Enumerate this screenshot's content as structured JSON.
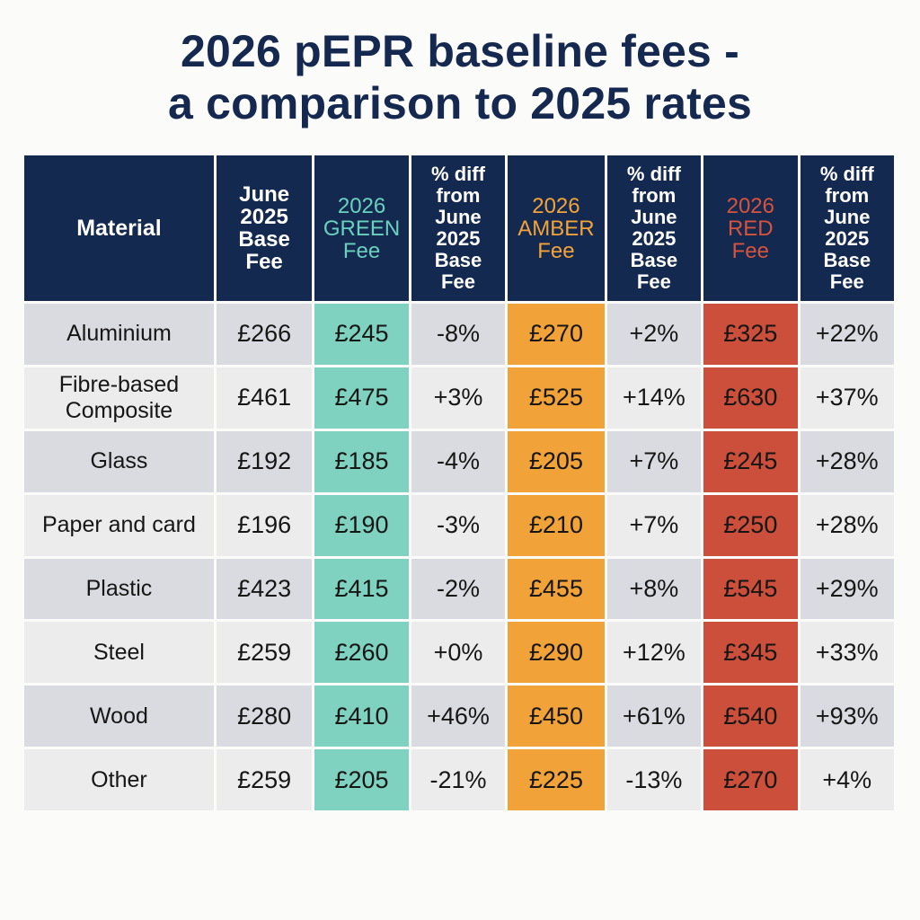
{
  "title": {
    "line1": "2026 pEPR baseline fees -",
    "line2": "a comparison to 2025 rates"
  },
  "colors": {
    "header_bg": "#14294f",
    "green": "#7fd1c0",
    "amber": "#f1a33a",
    "red": "#cb4f3a"
  },
  "chart_data": {
    "type": "table",
    "title": "2026 pEPR baseline fees - a comparison to 2025 rates",
    "columns": [
      [
        "Material"
      ],
      [
        "June",
        "2025",
        "Base",
        "Fee"
      ],
      [
        "2026",
        "GREEN",
        "Fee"
      ],
      [
        "% diff",
        "from",
        "June",
        "2025",
        "Base",
        "Fee"
      ],
      [
        "2026",
        "AMBER",
        "Fee"
      ],
      [
        "% diff",
        "from",
        "June",
        "2025",
        "Base",
        "Fee"
      ],
      [
        "2026",
        "RED",
        "Fee"
      ],
      [
        "% diff",
        "from",
        "June",
        "2025",
        "Base",
        "Fee"
      ]
    ],
    "rows": [
      {
        "material": [
          "Aluminium"
        ],
        "june_2025": "£266",
        "green": "£245",
        "green_diff": "-8%",
        "amber": "£270",
        "amber_diff": "+2%",
        "red": "£325",
        "red_diff": "+22%"
      },
      {
        "material": [
          "Fibre-based",
          "Composite"
        ],
        "june_2025": "£461",
        "green": "£475",
        "green_diff": "+3%",
        "amber": "£525",
        "amber_diff": "+14%",
        "red": "£630",
        "red_diff": "+37%"
      },
      {
        "material": [
          "Glass"
        ],
        "june_2025": "£192",
        "green": "£185",
        "green_diff": "-4%",
        "amber": "£205",
        "amber_diff": "+7%",
        "red": "£245",
        "red_diff": "+28%"
      },
      {
        "material": [
          "Paper and card"
        ],
        "june_2025": "£196",
        "green": "£190",
        "green_diff": "-3%",
        "amber": "£210",
        "amber_diff": "+7%",
        "red": "£250",
        "red_diff": "+28%"
      },
      {
        "material": [
          "Plastic"
        ],
        "june_2025": "£423",
        "green": "£415",
        "green_diff": "-2%",
        "amber": "£455",
        "amber_diff": "+8%",
        "red": "£545",
        "red_diff": "+29%"
      },
      {
        "material": [
          "Steel"
        ],
        "june_2025": "£259",
        "green": "£260",
        "green_diff": "+0%",
        "amber": "£290",
        "amber_diff": "+12%",
        "red": "£345",
        "red_diff": "+33%"
      },
      {
        "material": [
          "Wood"
        ],
        "june_2025": "£280",
        "green": "£410",
        "green_diff": "+46%",
        "amber": "£450",
        "amber_diff": "+61%",
        "red": "£540",
        "red_diff": "+93%"
      },
      {
        "material": [
          "Other"
        ],
        "june_2025": "£259",
        "green": "£205",
        "green_diff": "-21%",
        "amber": "£225",
        "amber_diff": "-13%",
        "red": "£270",
        "red_diff": "+4%"
      }
    ]
  }
}
